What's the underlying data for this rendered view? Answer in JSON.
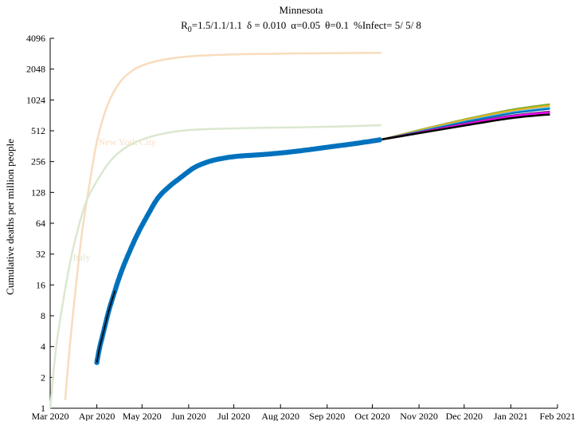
{
  "chart_data": {
    "type": "line",
    "title": "Minnesota",
    "subtitle": {
      "r0_prefix": "R",
      "r0_sub": "0",
      "r0_value": "=1.5/1.1/1.1",
      "delta": "δ = 0.010",
      "alpha": "α=0.05",
      "theta": "θ=0.1",
      "infect": "%Infect= 5/ 5/ 8"
    },
    "ylabel": "Cumulative deaths per million people",
    "xlabel": "",
    "yscale": "log2",
    "ylim": [
      1,
      4096
    ],
    "yticks": [
      1,
      2,
      4,
      8,
      16,
      32,
      64,
      128,
      256,
      512,
      1024,
      2048,
      4096
    ],
    "ytick_labels": [
      "1",
      "2",
      "4",
      "8",
      "16",
      "32",
      "64",
      "128",
      "256",
      "512",
      "1024",
      "2048",
      "4096"
    ],
    "xlim": [
      "2020-03-01",
      "2021-02-01"
    ],
    "xticks": [
      "2020-03-01",
      "2020-04-01",
      "2020-05-01",
      "2020-06-01",
      "2020-07-01",
      "2020-08-01",
      "2020-09-01",
      "2020-10-01",
      "2020-11-01",
      "2020-12-01",
      "2021-01-01",
      "2021-02-01"
    ],
    "xtick_labels": [
      "Mar 2020",
      "Apr 2020",
      "May 2020",
      "Jun 2020",
      "Jul 2020",
      "Aug 2020",
      "Sep 2020",
      "Oct 2020",
      "Nov 2020",
      "Dec 2020",
      "Jan 2021",
      "Feb 2021"
    ],
    "grid": false,
    "reference_curves": [
      {
        "name": "New York City",
        "color": "#f9dcbd",
        "x": [
          "2020-03-11",
          "2020-03-14",
          "2020-03-18",
          "2020-03-22",
          "2020-03-27",
          "2020-04-01",
          "2020-04-08",
          "2020-04-16",
          "2020-04-25",
          "2020-05-06",
          "2020-05-20",
          "2020-06-05",
          "2020-07-01",
          "2020-08-01",
          "2020-09-01",
          "2020-10-07"
        ],
        "y": [
          1.2,
          4,
          15,
          50,
          150,
          400,
          900,
          1500,
          2000,
          2350,
          2600,
          2750,
          2850,
          2900,
          2930,
          2950
        ]
      },
      {
        "name": "Italy",
        "color": "#dbe8cf",
        "x": [
          "2020-03-01",
          "2020-03-05",
          "2020-03-10",
          "2020-03-15",
          "2020-03-20",
          "2020-03-25",
          "2020-04-01",
          "2020-04-10",
          "2020-04-20",
          "2020-05-01",
          "2020-05-15",
          "2020-06-01",
          "2020-07-01",
          "2020-08-01",
          "2020-09-01",
          "2020-10-07"
        ],
        "y": [
          1,
          4,
          12,
          30,
          60,
          105,
          165,
          260,
          350,
          420,
          480,
          520,
          540,
          550,
          560,
          580
        ]
      }
    ],
    "observed": {
      "color": "#0072bd",
      "x": [
        "2020-04-01",
        "2020-04-03",
        "2020-04-06",
        "2020-04-09",
        "2020-04-13",
        "2020-04-17",
        "2020-04-22",
        "2020-04-28",
        "2020-05-05",
        "2020-05-12",
        "2020-05-20",
        "2020-05-28",
        "2020-06-05",
        "2020-06-15",
        "2020-06-25",
        "2020-07-05",
        "2020-07-20",
        "2020-08-05",
        "2020-08-20",
        "2020-09-05",
        "2020-09-20",
        "2020-10-07"
      ],
      "y": [
        2.8,
        4,
        6,
        9,
        14,
        21,
        32,
        50,
        78,
        115,
        150,
        185,
        225,
        258,
        278,
        290,
        300,
        315,
        335,
        360,
        385,
        420
      ]
    },
    "projections": [
      {
        "color": "#77ac30",
        "x": [
          "2020-10-07",
          "2020-11-01",
          "2020-12-01",
          "2021-01-01",
          "2021-01-27"
        ],
        "y": [
          420,
          520,
          660,
          820,
          930
        ]
      },
      {
        "color": "#edb120",
        "x": [
          "2020-10-07",
          "2020-11-01",
          "2020-12-01",
          "2021-01-01",
          "2021-01-27"
        ],
        "y": [
          420,
          515,
          650,
          800,
          900
        ]
      },
      {
        "color": "#4dbeee",
        "x": [
          "2020-10-07",
          "2020-11-01",
          "2020-12-01",
          "2021-01-01",
          "2021-01-27"
        ],
        "y": [
          420,
          505,
          630,
          770,
          860
        ]
      },
      {
        "color": "#0072bd",
        "x": [
          "2020-10-07",
          "2020-11-01",
          "2020-12-01",
          "2021-01-01",
          "2021-01-27"
        ],
        "y": [
          420,
          500,
          620,
          755,
          840
        ]
      },
      {
        "color": "#7e2f8e",
        "x": [
          "2020-10-07",
          "2020-11-01",
          "2020-12-01",
          "2021-01-01",
          "2021-01-27"
        ],
        "y": [
          420,
          495,
          600,
          720,
          790
        ]
      },
      {
        "color": "#ff00ff",
        "x": [
          "2020-10-07",
          "2020-11-01",
          "2020-12-01",
          "2021-01-01",
          "2021-01-27"
        ],
        "y": [
          420,
          490,
          590,
          705,
          770
        ]
      },
      {
        "color": "#000000",
        "x": [
          "2020-10-07",
          "2020-11-01",
          "2020-12-01",
          "2021-01-01",
          "2021-01-27"
        ],
        "y": [
          420,
          485,
          575,
          680,
          740
        ]
      }
    ],
    "fit_line": {
      "color": "#000000",
      "x": [
        "2020-04-01",
        "2020-04-03",
        "2020-04-06",
        "2020-04-09",
        "2020-04-13"
      ],
      "y": [
        2.8,
        4,
        6,
        9,
        14
      ]
    }
  }
}
